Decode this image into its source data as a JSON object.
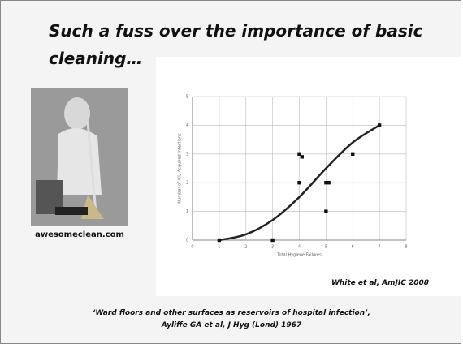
{
  "slide": {
    "title_lines": [
      "Such a fuss over the importance of basic",
      "cleaning…"
    ],
    "image_caption": "awesomeclean.com",
    "citation": "White et al, AmJIC 2008",
    "footer_lines": [
      "‘Ward floors and other surfaces as reservoirs of hospital infection’,",
      "Ayliffe GA et al, J Hyg (Lond) 1967"
    ]
  },
  "chart_data": {
    "type": "scatter",
    "x_label": "Total Hygiene Failures",
    "y_label": "Number of ICU-Acquired Infections",
    "x": [
      1,
      3,
      4,
      4.1,
      4,
      5,
      5.1,
      5,
      6,
      7
    ],
    "values": [
      0,
      0,
      3,
      2.9,
      2,
      2,
      2,
      1,
      3,
      4
    ],
    "color": "#111111",
    "fit": {
      "x": [
        1,
        2,
        3,
        4,
        5,
        6,
        7
      ],
      "values": [
        0,
        0.2,
        0.7,
        1.5,
        2.5,
        3.4,
        4
      ],
      "color": "#222222"
    },
    "xlim": [
      0,
      8
    ],
    "xticks": [
      0,
      1,
      2,
      3,
      4,
      5,
      6,
      7,
      8
    ],
    "ylim": [
      0,
      5
    ],
    "yticks": [
      0,
      1,
      2,
      3,
      4,
      5
    ],
    "grid": true
  }
}
